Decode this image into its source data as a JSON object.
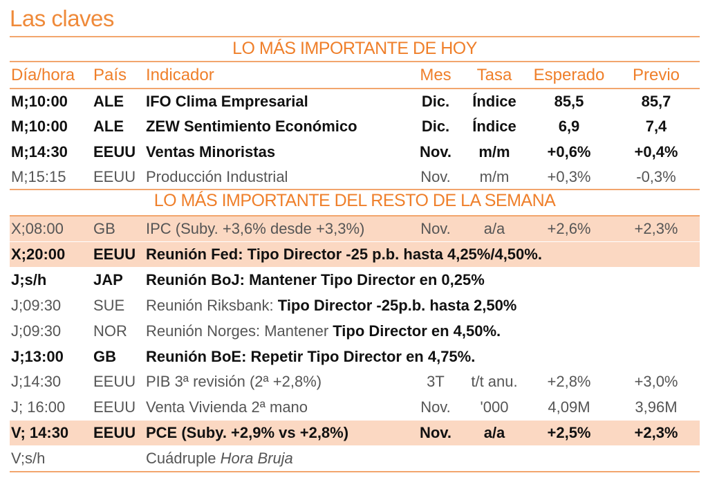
{
  "title": "Las claves",
  "section_today": "LO MÁS IMPORTANTE DE HOY",
  "section_week": "LO MÁS IMPORTANTE DEL RESTO DE LA SEMANA",
  "headers": {
    "day": "Día/hora",
    "country": "País",
    "indicator": "Indicador",
    "month": "Mes",
    "rate": "Tasa",
    "expected": "Esperado",
    "previous": "Previo"
  },
  "colors": {
    "accent": "#ef7f2a",
    "highlight": "#fbd8c2"
  },
  "today_rows": [
    {
      "day": "M;10:00",
      "country": "ALE",
      "indicator": "IFO Clima Empresarial",
      "month": "Dic.",
      "rate": "Índice",
      "expected": "85,5",
      "previous": "85,7",
      "style": "bold"
    },
    {
      "day": "M;10:00",
      "country": "ALE",
      "indicator": "ZEW Sentimiento Económico",
      "month": "Dic.",
      "rate": "Índice",
      "expected": "6,9",
      "previous": "7,4",
      "style": "bold"
    },
    {
      "day": "M;14:30",
      "country": "EEUU",
      "indicator": "Ventas Minoristas",
      "month": "Nov.",
      "rate": "m/m",
      "expected": "+0,6%",
      "previous": "+0,4%",
      "style": "bold"
    },
    {
      "day": "M;15:15",
      "country": "EEUU",
      "indicator": "Producción Industrial",
      "month": "Nov.",
      "rate": "m/m",
      "expected": "+0,3%",
      "previous": "-0,3%",
      "style": "light"
    }
  ],
  "week_rows": [
    {
      "day": "X;08:00",
      "country": "GB",
      "indicator": "IPC (Suby. +3,6% desde +3,3%)",
      "month": "Nov.",
      "rate": "a/a",
      "expected": "+2,6%",
      "previous": "+2,3%",
      "style": "light",
      "highlight": true
    },
    {
      "day": "X;20:00",
      "country": "EEUU",
      "indicator": "Reunión Fed: Tipo Director -25 p.b. hasta 4,25%/4,50%.",
      "style": "bold",
      "highlight": true
    },
    {
      "day": "J;s/h",
      "country": "JAP",
      "indicator": "Reunión BoJ: Mantener Tipo Director en 0,25%",
      "style": "bold"
    },
    {
      "day": "J;09:30",
      "country": "SUE",
      "indicator": "Reunión Riksbank: ",
      "indicator_bold": "Tipo Director -25p.b. hasta 2,50%",
      "style": "light"
    },
    {
      "day": "J;09:30",
      "country": "NOR",
      "indicator": "Reunión Norges: Mantener ",
      "indicator_bold": "Tipo Director en 4,50%.",
      "style": "light"
    },
    {
      "day": "J;13:00",
      "country": "GB",
      "indicator": "Reunión BoE: Repetir Tipo Director en 4,75%.",
      "style": "bold"
    },
    {
      "day": "J;14:30",
      "country": "EEUU",
      "indicator": "PIB 3ª revisión (2ª +2,8%)",
      "month": "3T",
      "rate": "t/t anu.",
      "expected": "+2,8%",
      "previous": "+3,0%",
      "style": "light"
    },
    {
      "day": "J; 16:00",
      "country": "EEUU",
      "indicator": "Venta Vivienda 2ª mano",
      "month": "Nov.",
      "rate": "'000",
      "expected": "4,09M",
      "previous": "3,96M",
      "style": "light"
    },
    {
      "day": "V; 14:30",
      "country": "EEUU",
      "indicator": "PCE (Suby. +2,9% vs +2,8%)",
      "month": "Nov.",
      "rate": "a/a",
      "expected": "+2,5%",
      "previous": "+2,3%",
      "style": "bold",
      "highlight": true
    },
    {
      "day": "V;s/h",
      "country": "",
      "indicator": "Cuádruple ",
      "indicator_italic": "Hora Bruja",
      "style": "light"
    }
  ]
}
